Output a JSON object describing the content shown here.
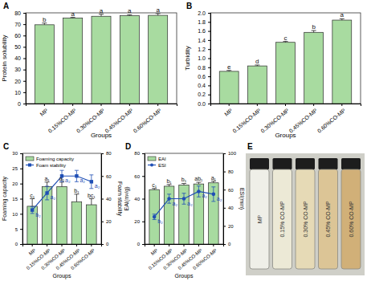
{
  "chart_data": [
    {
      "type": "bar",
      "title": "A",
      "x_label": "Groups",
      "y_label": "Protein solubility",
      "categories": [
        "MP",
        "0.15%CO-MP",
        "0.30%CO-MP",
        "0.45%CO-MP",
        "0.60%CO-MP"
      ],
      "values": [
        69.5,
        75.5,
        77,
        77.5,
        77.8
      ],
      "errors": [
        1.5,
        0.5,
        1.8,
        0.8,
        1.6
      ],
      "annotations": [
        "b",
        "a",
        "a",
        "a",
        "a"
      ],
      "color": "#a8dba0",
      "ylim": [
        0,
        80
      ],
      "yticks": [
        0,
        10,
        20,
        30,
        40,
        50,
        60,
        70,
        80
      ]
    },
    {
      "type": "bar",
      "title": "B",
      "x_label": "Groups",
      "y_label": "Turbidity",
      "categories": [
        "MP",
        "0.15%CO-MP",
        "0.30%CO-MP",
        "0.45%CO-MP",
        "0.60%CO-MP"
      ],
      "values": [
        0.71,
        0.83,
        1.35,
        1.57,
        1.84
      ],
      "errors": [
        0.02,
        0.02,
        0.02,
        0.04,
        0.03
      ],
      "annotations": [
        "e",
        "d",
        "c",
        "b",
        "a"
      ],
      "color": "#a8dba0",
      "ylim": [
        0,
        2
      ],
      "yticks": [
        {
          "value": 0,
          "label": "0.0"
        },
        0.2,
        0.4,
        0.6,
        0.8,
        {
          "value": 1,
          "label": "1.0"
        },
        1.2,
        1.4,
        1.6,
        1.8,
        {
          "value": 2,
          "label": "2.0"
        }
      ]
    },
    {
      "type": "bar",
      "title": "C",
      "x_label": "Groups",
      "y_label": "Foaming capacity",
      "y2_label": "Foam stability",
      "categories": [
        "MP",
        "0.15%CO-MP",
        "0.30%CO-MP",
        "0.45%CO-MP",
        "0.60%CO-MP"
      ],
      "series": [
        {
          "name": "Foaming capacity",
          "type": "bar",
          "color": "#a8dba0",
          "values": [
            12.5,
            19,
            19,
            14,
            13
          ],
          "errors": [
            2.5,
            1.5,
            1.5,
            2.5,
            2
          ],
          "annotations": [
            "c₁",
            "a₁",
            "a₁",
            "b₁",
            "bc₁"
          ]
        },
        {
          "name": "Foam stability",
          "type": "line",
          "axis": "y2",
          "color": "#1f4fb5",
          "marker": "square",
          "values": [
            30,
            45,
            60,
            60,
            55
          ],
          "errors": [
            3,
            6,
            5,
            5,
            6
          ],
          "annotations": [
            "b₂",
            "a₂",
            "a₂",
            "a₂",
            "a₂"
          ]
        }
      ],
      "legend": "upper left",
      "ylim": [
        0,
        30
      ],
      "yticks": [
        0,
        5,
        10,
        15,
        20,
        25,
        30
      ],
      "y2lim": [
        0,
        80
      ],
      "y2ticks": [
        0,
        20,
        40,
        60,
        80
      ]
    },
    {
      "type": "bar",
      "title": "D",
      "x_label": "Groups",
      "y_label": "EAI(m²/g)",
      "y2_label": "ESI(min)",
      "categories": [
        "MP",
        "0.15%CO-MP",
        "0.30%CO-MP",
        "0.45%CO-MP",
        "0.60%CO-MP"
      ],
      "series": [
        {
          "name": "EAI",
          "type": "bar",
          "color": "#a8dba0",
          "values": [
            48,
            51,
            52,
            53,
            54
          ],
          "errors": [
            1,
            1.5,
            1.5,
            1.5,
            1.5
          ],
          "annotations": [
            "c₁",
            "b₁",
            "b₁",
            "ab₁",
            "a₁"
          ]
        },
        {
          "name": "ESI",
          "type": "line",
          "axis": "y2",
          "color": "#1f4fb5",
          "marker": "circle",
          "values": [
            30,
            50,
            50,
            58,
            55
          ],
          "errors": [
            3,
            5,
            6,
            6,
            8
          ],
          "annotations": [
            "b₂",
            "a₂",
            "a₂",
            "a₂",
            "a₂"
          ]
        }
      ],
      "legend": "upper left",
      "ylim": [
        0,
        80
      ],
      "yticks": [
        0,
        20,
        40,
        60,
        80
      ],
      "y2lim": [
        0,
        100
      ],
      "y2ticks": [
        0,
        20,
        40,
        60,
        80,
        100
      ]
    }
  ],
  "image_panel": {
    "title": "E",
    "captions": [
      "MP",
      "0.15% CO-MP",
      "0.30% CO-MP",
      "0.45% CO-MP",
      "0.60% CO-MP"
    ]
  }
}
